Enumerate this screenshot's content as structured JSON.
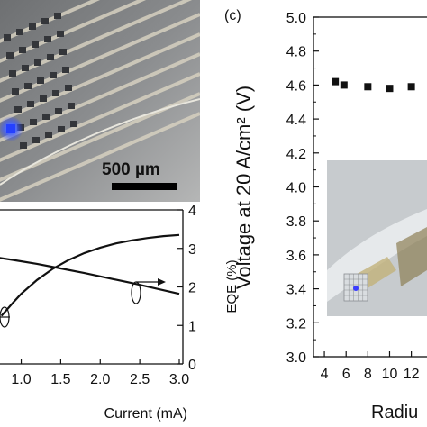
{
  "micrograph": {
    "scale_bar_label": "500 µm",
    "colors": {
      "background": "#7b7e80",
      "pad": "#34363a",
      "trace": "#d6d0c0",
      "emitter": "#1f3cff"
    }
  },
  "panel_c": {
    "panel_label": "(c)",
    "inset_photo": {
      "colors": {
        "background": "#c9cdd0",
        "emitter": "#3a3cff"
      }
    }
  },
  "chart_data": [
    {
      "type": "scatter",
      "title": "",
      "xlabel": "Radiu",
      "ylabel": "Voltage at 20 A/cm² (V)",
      "xlim": [
        3,
        14.6
      ],
      "ylim": [
        3.0,
        5.0
      ],
      "xticks": [
        4,
        6,
        8,
        10,
        12
      ],
      "xtick_labels": [
        "4",
        "6",
        "8",
        "10",
        "12"
      ],
      "yticks": [
        3.0,
        3.2,
        3.4,
        3.6,
        3.8,
        4.0,
        4.2,
        4.4,
        4.6,
        4.8,
        5.0
      ],
      "ytick_labels": [
        "3.0",
        "3.2",
        "3.4",
        "3.6",
        "3.8",
        "4.0",
        "4.2",
        "4.4",
        "4.6",
        "4.8",
        "5.0"
      ],
      "marker_color": "#111111",
      "series": [
        {
          "x": [
            5,
            5.8,
            8,
            10,
            12
          ],
          "y": [
            4.62,
            4.6,
            4.59,
            4.58,
            4.59
          ]
        }
      ]
    },
    {
      "type": "line",
      "title": "",
      "xlabel": "Current (mA)",
      "ylabel_right": "EQE (%)",
      "xlim": [
        0.3,
        3.0
      ],
      "y2lim": [
        0,
        4
      ],
      "xticks": [
        1.0,
        1.5,
        2.0,
        2.5,
        3.0
      ],
      "xtick_labels": [
        "1.0",
        "1.5",
        "2.0",
        "2.5",
        "3.0"
      ],
      "y2ticks": [
        0,
        1,
        2,
        3,
        4
      ],
      "y2tick_labels": [
        "0",
        "1",
        "2",
        "3",
        "4"
      ],
      "series": [
        {
          "axis": "right",
          "x": [
            0.3,
            0.6,
            0.9,
            1.2,
            1.5,
            1.8,
            2.1,
            2.4,
            2.7,
            3.0
          ],
          "y": [
            2.85,
            2.79,
            2.7,
            2.6,
            2.48,
            2.36,
            2.23,
            2.1,
            1.96,
            1.82
          ]
        },
        {
          "axis": "other",
          "x": [
            0.75,
            0.9,
            1.0,
            1.2,
            1.4,
            1.6,
            1.8,
            2.0,
            2.2,
            2.4,
            2.6,
            2.8,
            3.0
          ],
          "y": [
            1.25,
            1.6,
            1.82,
            2.18,
            2.47,
            2.7,
            2.88,
            3.02,
            3.13,
            3.21,
            3.27,
            3.32,
            3.35
          ]
        }
      ]
    }
  ]
}
